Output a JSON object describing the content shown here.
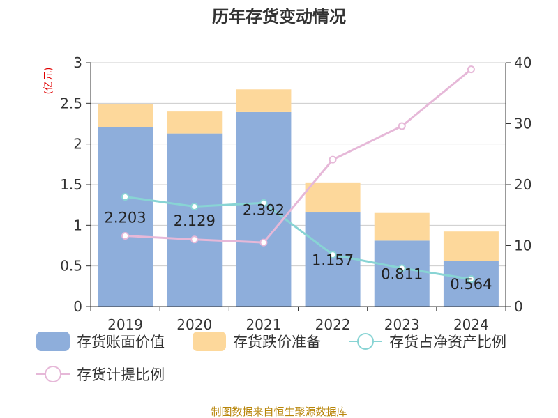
{
  "title": "历年存货变动情况",
  "source": "制图数据来自恒生聚源数据库",
  "chart_data": {
    "type": "bar",
    "categories": [
      "2019",
      "2020",
      "2021",
      "2022",
      "2023",
      "2024"
    ],
    "left_axis": {
      "unit_label": "(亿元)",
      "ylim": [
        0,
        3
      ],
      "ticks": [
        0,
        0.5,
        1,
        1.5,
        2,
        2.5,
        3
      ],
      "tick_labels": [
        "0",
        "0.5",
        "1",
        "1.5",
        "2",
        "2.5",
        "3"
      ]
    },
    "right_axis": {
      "unit_label": "%",
      "ylim": [
        0,
        40
      ],
      "ticks": [
        0,
        10,
        20,
        30,
        40
      ],
      "tick_labels": [
        "0",
        "10",
        "20",
        "30",
        "40"
      ]
    },
    "series": [
      {
        "name": "存货账面价值",
        "kind": "bar",
        "stack": "a",
        "axis": "left",
        "color": "#8eaedb",
        "values": [
          2.203,
          2.129,
          2.392,
          1.157,
          0.811,
          0.564
        ],
        "data_labels": [
          "2.203",
          "2.129",
          "2.392",
          "1.157",
          "0.811",
          "0.564"
        ]
      },
      {
        "name": "存货跌价准备",
        "kind": "bar",
        "stack": "a",
        "axis": "left",
        "color": "#fdd89b",
        "values": [
          0.29,
          0.27,
          0.28,
          0.37,
          0.34,
          0.36
        ]
      },
      {
        "name": "存货占净资产比例",
        "kind": "line",
        "axis": "right",
        "color": "#88d4d4",
        "values": [
          18.0,
          16.4,
          17.0,
          8.5,
          6.3,
          4.5
        ]
      },
      {
        "name": "存货计提比例",
        "kind": "line",
        "axis": "right",
        "color": "#e6b8d8",
        "values": [
          11.6,
          11.0,
          10.5,
          24.1,
          29.6,
          38.9
        ]
      }
    ],
    "grid": true,
    "legend_position": "bottom"
  }
}
